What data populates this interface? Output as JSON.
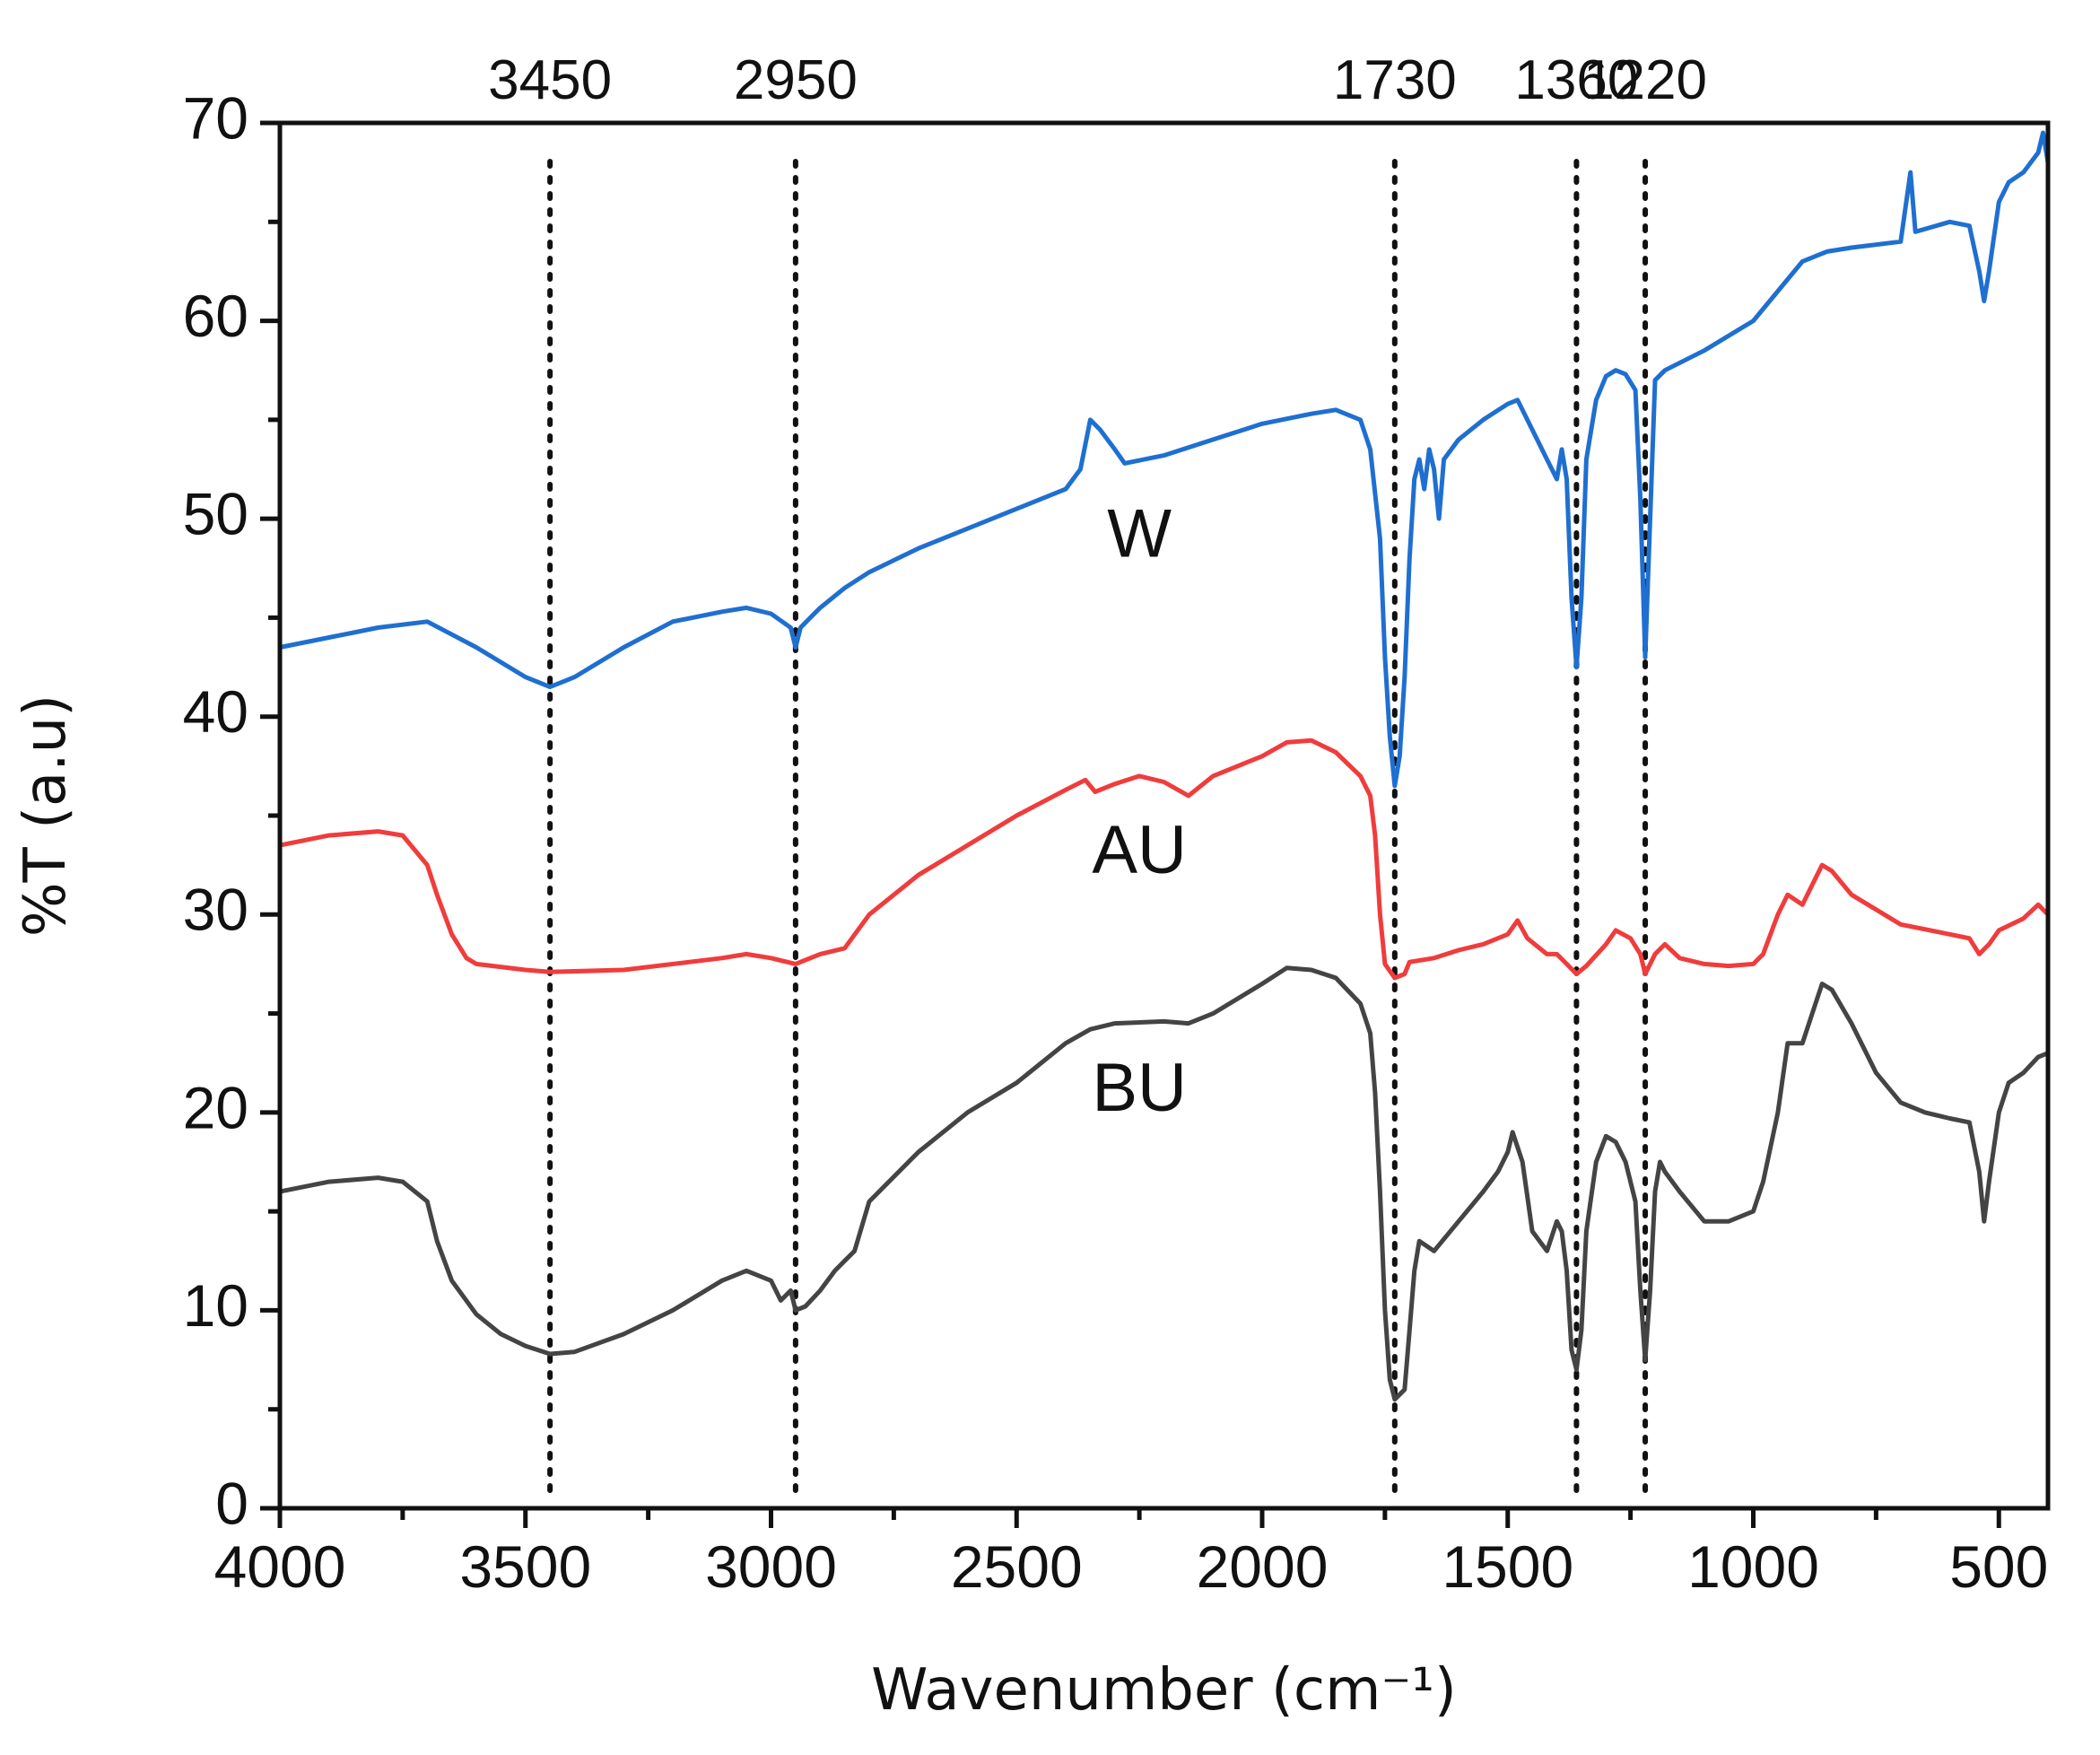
{
  "chart_data": {
    "type": "line",
    "title": "",
    "xlabel": "Wavenumber (cm⁻¹)",
    "ylabel": "%T (a.u)",
    "xlim": [
      4000,
      400
    ],
    "ylim": [
      0,
      70
    ],
    "x_ticks": [
      "4000",
      "3500",
      "3000",
      "2500",
      "2000",
      "1500",
      "1000",
      "500"
    ],
    "y_ticks": [
      "0",
      "10",
      "20",
      "30",
      "40",
      "50",
      "60",
      "70"
    ],
    "grid": false,
    "legend": "none",
    "peak_markers": [
      {
        "x": 3450,
        "label": "3450"
      },
      {
        "x": 2950,
        "label": "2950"
      },
      {
        "x": 1730,
        "label": "1730"
      },
      {
        "x": 1360,
        "label": "1360"
      },
      {
        "x": 1220,
        "label": "1220"
      }
    ],
    "series": [
      {
        "name": "W",
        "color": "#1f6fd1",
        "label_at": [
          2250,
          49
        ],
        "points": [
          [
            4000,
            43.5
          ],
          [
            3900,
            44.0
          ],
          [
            3800,
            44.5
          ],
          [
            3700,
            44.8
          ],
          [
            3600,
            43.5
          ],
          [
            3500,
            42.0
          ],
          [
            3450,
            41.5
          ],
          [
            3400,
            42.0
          ],
          [
            3300,
            43.5
          ],
          [
            3200,
            44.8
          ],
          [
            3100,
            45.3
          ],
          [
            3050,
            45.5
          ],
          [
            3000,
            45.2
          ],
          [
            2960,
            44.5
          ],
          [
            2950,
            43.5
          ],
          [
            2940,
            44.5
          ],
          [
            2920,
            45.0
          ],
          [
            2900,
            45.5
          ],
          [
            2850,
            46.5
          ],
          [
            2800,
            47.3
          ],
          [
            2700,
            48.5
          ],
          [
            2600,
            49.5
          ],
          [
            2500,
            50.5
          ],
          [
            2400,
            51.5
          ],
          [
            2370,
            52.5
          ],
          [
            2350,
            55.0
          ],
          [
            2330,
            54.5
          ],
          [
            2300,
            53.5
          ],
          [
            2280,
            52.8
          ],
          [
            2200,
            53.2
          ],
          [
            2100,
            54.0
          ],
          [
            2000,
            54.8
          ],
          [
            1900,
            55.3
          ],
          [
            1850,
            55.5
          ],
          [
            1800,
            55.0
          ],
          [
            1780,
            53.5
          ],
          [
            1760,
            49.0
          ],
          [
            1750,
            43.0
          ],
          [
            1740,
            39.0
          ],
          [
            1730,
            36.5
          ],
          [
            1720,
            38.0
          ],
          [
            1710,
            42.0
          ],
          [
            1700,
            48.0
          ],
          [
            1690,
            52.0
          ],
          [
            1680,
            53.0
          ],
          [
            1670,
            51.5
          ],
          [
            1660,
            53.5
          ],
          [
            1650,
            52.5
          ],
          [
            1640,
            50.0
          ],
          [
            1630,
            53.0
          ],
          [
            1600,
            54.0
          ],
          [
            1550,
            55.0
          ],
          [
            1500,
            55.8
          ],
          [
            1480,
            56.0
          ],
          [
            1450,
            54.5
          ],
          [
            1420,
            53.0
          ],
          [
            1400,
            52.0
          ],
          [
            1390,
            53.5
          ],
          [
            1380,
            52.0
          ],
          [
            1370,
            46.0
          ],
          [
            1360,
            42.5
          ],
          [
            1350,
            46.0
          ],
          [
            1340,
            53.0
          ],
          [
            1320,
            56.0
          ],
          [
            1300,
            57.2
          ],
          [
            1280,
            57.5
          ],
          [
            1260,
            57.3
          ],
          [
            1240,
            56.5
          ],
          [
            1230,
            51.0
          ],
          [
            1220,
            43.0
          ],
          [
            1210,
            50.0
          ],
          [
            1200,
            57.0
          ],
          [
            1180,
            57.5
          ],
          [
            1100,
            58.5
          ],
          [
            1000,
            60.0
          ],
          [
            950,
            61.5
          ],
          [
            900,
            63.0
          ],
          [
            850,
            63.5
          ],
          [
            800,
            63.7
          ],
          [
            700,
            64.0
          ],
          [
            680,
            67.5
          ],
          [
            670,
            64.5
          ],
          [
            600,
            65.0
          ],
          [
            560,
            64.8
          ],
          [
            540,
            62.5
          ],
          [
            530,
            61.0
          ],
          [
            520,
            62.5
          ],
          [
            500,
            66.0
          ],
          [
            480,
            67.0
          ],
          [
            450,
            67.5
          ],
          [
            420,
            68.5
          ],
          [
            410,
            69.5
          ],
          [
            400,
            68.0
          ]
        ]
      },
      {
        "name": "AU",
        "color": "#f03c3c",
        "label_at": [
          2250,
          33
        ],
        "points": [
          [
            4000,
            33.5
          ],
          [
            3900,
            34.0
          ],
          [
            3800,
            34.2
          ],
          [
            3750,
            34.0
          ],
          [
            3700,
            32.5
          ],
          [
            3680,
            31.0
          ],
          [
            3650,
            29.0
          ],
          [
            3620,
            27.8
          ],
          [
            3600,
            27.5
          ],
          [
            3500,
            27.2
          ],
          [
            3450,
            27.1
          ],
          [
            3300,
            27.2
          ],
          [
            3100,
            27.8
          ],
          [
            3050,
            28.0
          ],
          [
            3000,
            27.8
          ],
          [
            2950,
            27.5
          ],
          [
            2900,
            28.0
          ],
          [
            2850,
            28.3
          ],
          [
            2800,
            30.0
          ],
          [
            2700,
            32.0
          ],
          [
            2600,
            33.5
          ],
          [
            2500,
            35.0
          ],
          [
            2400,
            36.3
          ],
          [
            2360,
            36.8
          ],
          [
            2340,
            36.2
          ],
          [
            2300,
            36.6
          ],
          [
            2250,
            37.0
          ],
          [
            2200,
            36.7
          ],
          [
            2150,
            36.0
          ],
          [
            2100,
            37.0
          ],
          [
            2000,
            38.0
          ],
          [
            1950,
            38.7
          ],
          [
            1900,
            38.8
          ],
          [
            1850,
            38.2
          ],
          [
            1800,
            37.0
          ],
          [
            1780,
            36.0
          ],
          [
            1770,
            34.0
          ],
          [
            1760,
            30.0
          ],
          [
            1750,
            27.5
          ],
          [
            1730,
            26.8
          ],
          [
            1710,
            27.0
          ],
          [
            1700,
            27.6
          ],
          [
            1650,
            27.8
          ],
          [
            1600,
            28.2
          ],
          [
            1550,
            28.5
          ],
          [
            1500,
            29.0
          ],
          [
            1480,
            29.7
          ],
          [
            1460,
            28.8
          ],
          [
            1420,
            28.0
          ],
          [
            1400,
            28.0
          ],
          [
            1380,
            27.5
          ],
          [
            1360,
            27.0
          ],
          [
            1340,
            27.4
          ],
          [
            1300,
            28.5
          ],
          [
            1280,
            29.2
          ],
          [
            1250,
            28.8
          ],
          [
            1230,
            28.0
          ],
          [
            1220,
            27.0
          ],
          [
            1200,
            28.0
          ],
          [
            1180,
            28.5
          ],
          [
            1150,
            27.8
          ],
          [
            1100,
            27.5
          ],
          [
            1050,
            27.4
          ],
          [
            1000,
            27.5
          ],
          [
            980,
            28.0
          ],
          [
            950,
            30.0
          ],
          [
            930,
            31.0
          ],
          [
            900,
            30.5
          ],
          [
            880,
            31.5
          ],
          [
            860,
            32.5
          ],
          [
            840,
            32.2
          ],
          [
            800,
            31.0
          ],
          [
            700,
            29.5
          ],
          [
            600,
            29.0
          ],
          [
            560,
            28.8
          ],
          [
            540,
            28.0
          ],
          [
            520,
            28.5
          ],
          [
            500,
            29.2
          ],
          [
            450,
            29.8
          ],
          [
            420,
            30.5
          ],
          [
            400,
            30.0
          ]
        ]
      },
      {
        "name": "BU",
        "color": "#444444",
        "label_at": [
          2250,
          21
        ],
        "points": [
          [
            4000,
            16.0
          ],
          [
            3900,
            16.5
          ],
          [
            3800,
            16.7
          ],
          [
            3750,
            16.5
          ],
          [
            3700,
            15.5
          ],
          [
            3680,
            13.5
          ],
          [
            3650,
            11.5
          ],
          [
            3600,
            9.8
          ],
          [
            3550,
            8.8
          ],
          [
            3500,
            8.2
          ],
          [
            3450,
            7.8
          ],
          [
            3400,
            7.9
          ],
          [
            3300,
            8.8
          ],
          [
            3200,
            10.0
          ],
          [
            3100,
            11.5
          ],
          [
            3050,
            12.0
          ],
          [
            3000,
            11.5
          ],
          [
            2980,
            10.5
          ],
          [
            2960,
            11.0
          ],
          [
            2950,
            10.0
          ],
          [
            2930,
            10.2
          ],
          [
            2900,
            11.0
          ],
          [
            2870,
            12.0
          ],
          [
            2850,
            12.5
          ],
          [
            2830,
            13.0
          ],
          [
            2800,
            15.5
          ],
          [
            2700,
            18.0
          ],
          [
            2600,
            20.0
          ],
          [
            2500,
            21.5
          ],
          [
            2400,
            23.5
          ],
          [
            2350,
            24.2
          ],
          [
            2300,
            24.5
          ],
          [
            2200,
            24.6
          ],
          [
            2150,
            24.5
          ],
          [
            2100,
            25.0
          ],
          [
            2000,
            26.5
          ],
          [
            1950,
            27.3
          ],
          [
            1900,
            27.2
          ],
          [
            1850,
            26.8
          ],
          [
            1800,
            25.5
          ],
          [
            1780,
            24.0
          ],
          [
            1770,
            21.0
          ],
          [
            1760,
            16.0
          ],
          [
            1750,
            10.0
          ],
          [
            1740,
            6.5
          ],
          [
            1730,
            5.5
          ],
          [
            1710,
            6.0
          ],
          [
            1700,
            9.0
          ],
          [
            1690,
            12.0
          ],
          [
            1680,
            13.5
          ],
          [
            1650,
            13.0
          ],
          [
            1600,
            14.5
          ],
          [
            1550,
            16.0
          ],
          [
            1520,
            17.0
          ],
          [
            1500,
            18.0
          ],
          [
            1490,
            19.0
          ],
          [
            1470,
            17.5
          ],
          [
            1450,
            14.0
          ],
          [
            1420,
            13.0
          ],
          [
            1400,
            14.5
          ],
          [
            1390,
            14.0
          ],
          [
            1380,
            12.0
          ],
          [
            1370,
            8.0
          ],
          [
            1360,
            7.0
          ],
          [
            1350,
            9.0
          ],
          [
            1340,
            14.0
          ],
          [
            1320,
            17.5
          ],
          [
            1300,
            18.8
          ],
          [
            1280,
            18.5
          ],
          [
            1260,
            17.5
          ],
          [
            1240,
            15.5
          ],
          [
            1230,
            11.0
          ],
          [
            1220,
            7.5
          ],
          [
            1210,
            11.0
          ],
          [
            1200,
            16.0
          ],
          [
            1190,
            17.5
          ],
          [
            1180,
            17.0
          ],
          [
            1150,
            16.0
          ],
          [
            1100,
            14.5
          ],
          [
            1050,
            14.5
          ],
          [
            1000,
            15.0
          ],
          [
            980,
            16.5
          ],
          [
            950,
            20.0
          ],
          [
            930,
            23.5
          ],
          [
            900,
            23.5
          ],
          [
            880,
            25.0
          ],
          [
            860,
            26.5
          ],
          [
            840,
            26.2
          ],
          [
            800,
            24.5
          ],
          [
            750,
            22.0
          ],
          [
            700,
            20.5
          ],
          [
            650,
            20.0
          ],
          [
            600,
            19.7
          ],
          [
            560,
            19.5
          ],
          [
            540,
            17.0
          ],
          [
            530,
            14.5
          ],
          [
            520,
            16.5
          ],
          [
            500,
            20.0
          ],
          [
            480,
            21.5
          ],
          [
            450,
            22.0
          ],
          [
            420,
            22.8
          ],
          [
            400,
            23.0
          ]
        ]
      }
    ]
  }
}
